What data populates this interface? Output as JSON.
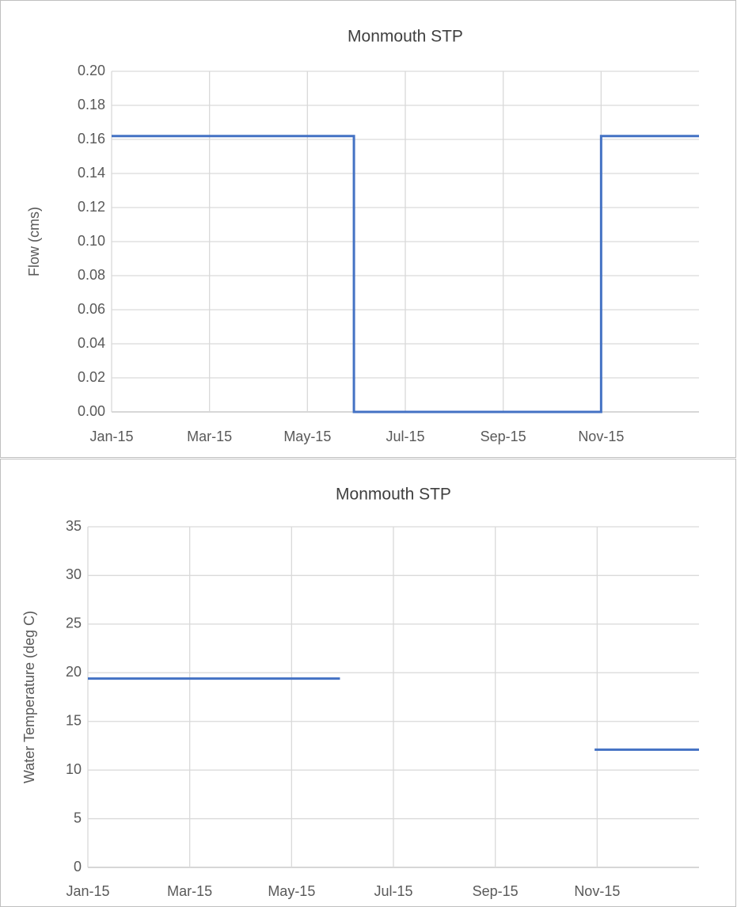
{
  "chart_data": [
    {
      "type": "line",
      "title": "Monmouth STP",
      "y_label": "Flow (cms)",
      "xlim": [
        0,
        12
      ],
      "xticks": [
        {
          "value": 0,
          "label": "Jan-15"
        },
        {
          "value": 2,
          "label": "Mar-15"
        },
        {
          "value": 4,
          "label": "May-15"
        },
        {
          "value": 6,
          "label": "Jul-15"
        },
        {
          "value": 8,
          "label": "Sep-15"
        },
        {
          "value": 10,
          "label": "Nov-15"
        }
      ],
      "ylim": [
        0,
        0.2
      ],
      "yticks": [
        {
          "value": 0,
          "label": "0.00"
        },
        {
          "value": 0.02,
          "label": "0.02"
        },
        {
          "value": 0.04,
          "label": "0.04"
        },
        {
          "value": 0.06,
          "label": "0.06"
        },
        {
          "value": 0.08,
          "label": "0.08"
        },
        {
          "value": 0.1,
          "label": "0.10"
        },
        {
          "value": 0.12,
          "label": "0.12"
        },
        {
          "value": 0.14,
          "label": "0.14"
        },
        {
          "value": 0.16,
          "label": "0.16"
        },
        {
          "value": 0.18,
          "label": "0.18"
        },
        {
          "value": 0.2,
          "label": "0.20"
        }
      ],
      "grid": true,
      "series": [
        {
          "color": "#4472c4",
          "x": [
            0,
            4.95,
            4.95,
            10,
            10,
            12
          ],
          "values": [
            0.162,
            0.162,
            0,
            0,
            0.162,
            0.162
          ]
        }
      ]
    },
    {
      "type": "line",
      "title": "Monmouth STP",
      "y_label": "Water Temperature (deg C)",
      "xlim": [
        0,
        12
      ],
      "xticks": [
        {
          "value": 0,
          "label": "Jan-15"
        },
        {
          "value": 2,
          "label": "Mar-15"
        },
        {
          "value": 4,
          "label": "May-15"
        },
        {
          "value": 6,
          "label": "Jul-15"
        },
        {
          "value": 8,
          "label": "Sep-15"
        },
        {
          "value": 10,
          "label": "Nov-15"
        }
      ],
      "ylim": [
        0,
        35
      ],
      "yticks": [
        0,
        5,
        10,
        15,
        20,
        25,
        30,
        35
      ],
      "grid": true,
      "series": [
        {
          "color": "#4472c4",
          "x": [
            0,
            4.95,
            7.5,
            9.95,
            12
          ],
          "values": [
            19.4,
            19.4,
            null,
            12.1,
            12.1
          ]
        }
      ]
    }
  ]
}
